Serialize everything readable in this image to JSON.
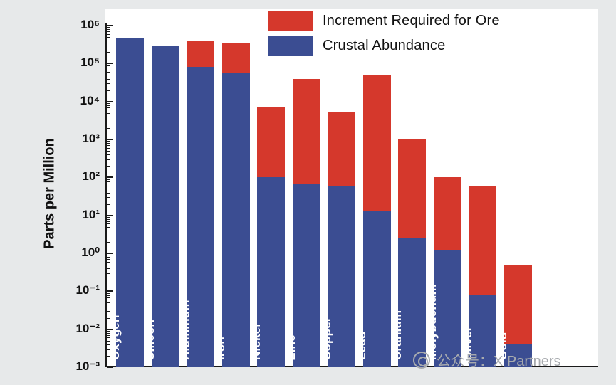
{
  "chart_data": {
    "type": "bar",
    "stacked": true,
    "scale_y": "log",
    "title": "",
    "ylabel": "Parts per Million",
    "categories": [
      "Oxygen",
      "Silicon",
      "Aluminum",
      "Iron",
      "Nickel",
      "Zinc",
      "Copper",
      "Lead",
      "Uranium",
      "Molybdenum",
      "Silver",
      "Gold"
    ],
    "series": [
      {
        "name": "Crustal Abundance",
        "color": "#3B4D92",
        "values": [
          461000,
          282000,
          82000,
          56000,
          100,
          70,
          60,
          13,
          2.5,
          1.2,
          0.08,
          0.004
        ]
      },
      {
        "name": "Increment Required for Ore",
        "color": "#D5382C",
        "values": [
          461000,
          282000,
          400000,
          350000,
          7000,
          40000,
          5500,
          50000,
          1000,
          100,
          60,
          0.5
        ],
        "meaning": "stacked top of bar (ore grade); red segment spans from crustal abundance up to this value"
      }
    ],
    "y_axis": {
      "label": "Parts per Million",
      "min": 0.001,
      "max": 1000000,
      "tick_exponents": [
        6,
        5,
        4,
        3,
        2,
        1,
        0,
        -1,
        -2,
        -3
      ],
      "tick_labels": [
        "10⁶",
        "10⁵",
        "10⁴",
        "10³",
        "10²",
        "10¹",
        "10⁰",
        "10⁻¹",
        "10⁻²",
        "10⁻³"
      ]
    },
    "legend": [
      {
        "label": "Increment Required for Ore",
        "color": "#D5382C"
      },
      {
        "label": "Crustal Abundance",
        "color": "#3B4D92"
      }
    ],
    "legend_position": "top",
    "grid": false
  },
  "watermark": {
    "icon": "circle-logo",
    "text": "公众号：X Partners"
  }
}
